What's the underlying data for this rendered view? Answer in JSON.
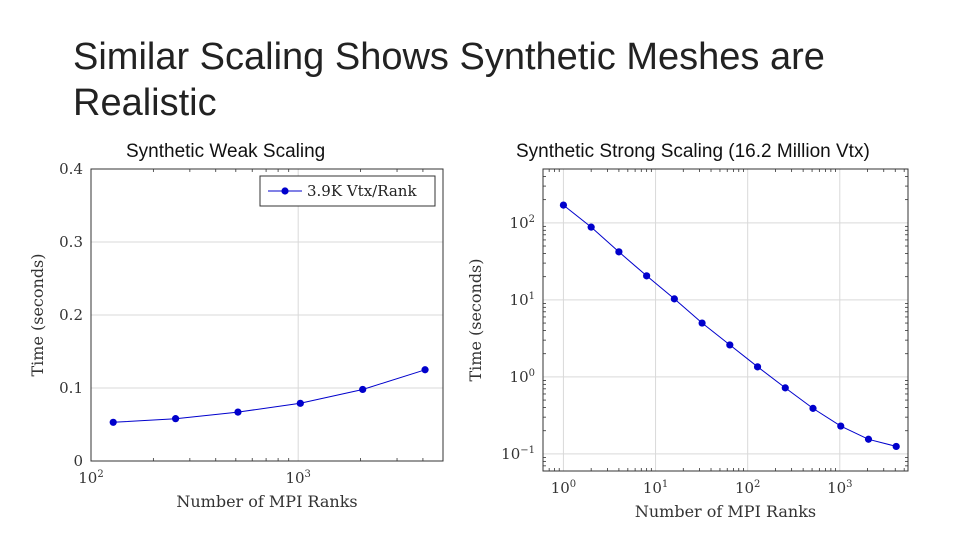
{
  "slide": {
    "title": "Similar Scaling Shows Synthetic Meshes are Realistic"
  },
  "chart_data": [
    {
      "type": "line",
      "title": "Synthetic Weak Scaling",
      "xlabel": "Number of MPI Ranks",
      "ylabel": "Time (seconds)",
      "xscale": "log",
      "yscale": "linear",
      "xlim": [
        100,
        5000
      ],
      "ylim": [
        0,
        0.4
      ],
      "x_ticks": [
        {
          "value": 100,
          "base": "10",
          "exp": "2"
        },
        {
          "value": 1000,
          "base": "10",
          "exp": "3"
        }
      ],
      "y_ticks": [
        {
          "value": 0,
          "label": "0"
        },
        {
          "value": 0.1,
          "label": "0.1"
        },
        {
          "value": 0.2,
          "label": "0.2"
        },
        {
          "value": 0.3,
          "label": "0.3"
        },
        {
          "value": 0.4,
          "label": "0.4"
        }
      ],
      "legend_position": "top-right",
      "series": [
        {
          "name": "3.9K Vtx/Rank",
          "color": "#0000cc",
          "x": [
            128,
            256,
            512,
            1024,
            2048,
            4096
          ],
          "y": [
            0.053,
            0.058,
            0.067,
            0.079,
            0.098,
            0.125
          ]
        }
      ]
    },
    {
      "type": "line",
      "title": "Synthetic Strong Scaling (16.2 Million Vtx)",
      "xlabel": "Number of MPI Ranks",
      "ylabel": "Time (seconds)",
      "xscale": "log",
      "yscale": "log",
      "xlim": [
        0.6,
        5500
      ],
      "ylim": [
        0.06,
        500
      ],
      "x_ticks": [
        {
          "value": 1,
          "base": "10",
          "exp": "0"
        },
        {
          "value": 10,
          "base": "10",
          "exp": "1"
        },
        {
          "value": 100,
          "base": "10",
          "exp": "2"
        },
        {
          "value": 1000,
          "base": "10",
          "exp": "3"
        }
      ],
      "y_ticks": [
        {
          "value": 0.1,
          "base": "10",
          "exp": "−1"
        },
        {
          "value": 1,
          "base": "10",
          "exp": "0"
        },
        {
          "value": 10,
          "base": "10",
          "exp": "1"
        },
        {
          "value": 100,
          "base": "10",
          "exp": "2"
        }
      ],
      "series": [
        {
          "name": "Synthetic Strong Scaling",
          "color": "#0000cc",
          "x": [
            1,
            2,
            4,
            8,
            16,
            32,
            64,
            128,
            256,
            512,
            1024,
            2048,
            4096
          ],
          "y": [
            170,
            88,
            42,
            20.5,
            10.3,
            5.0,
            2.6,
            1.35,
            0.72,
            0.39,
            0.23,
            0.155,
            0.125
          ]
        }
      ]
    }
  ],
  "colors": {
    "series": "#0000cc",
    "grid": "#d9d9d9",
    "axis": "#333333"
  }
}
